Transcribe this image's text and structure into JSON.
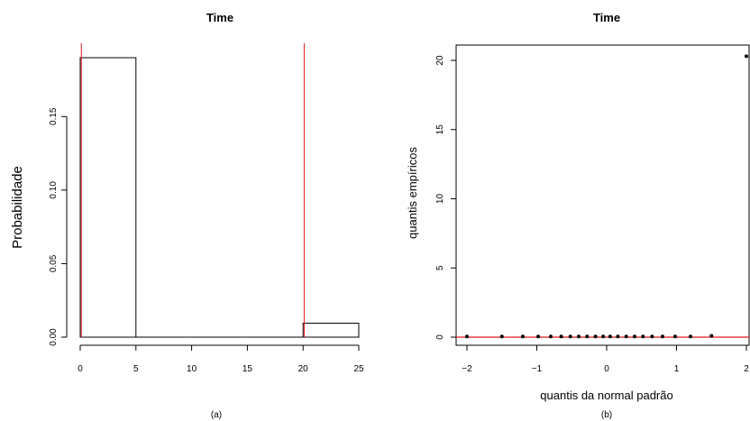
{
  "chart_data": [
    {
      "type": "bar",
      "title": "Time",
      "xlabel": "",
      "ylabel": "Probabilidade",
      "caption": "(a)",
      "xlim": [
        0,
        25
      ],
      "ylim": [
        0,
        0.19
      ],
      "x_ticks": [
        0,
        5,
        10,
        15,
        20,
        25
      ],
      "y_ticks": [
        0.0,
        0.05,
        0.1,
        0.15
      ],
      "y_tick_labels": [
        "0.00",
        "0.05",
        "0.10",
        "0.15"
      ],
      "bins": [
        {
          "from": 0,
          "to": 5,
          "value": 0.19
        },
        {
          "from": 5,
          "to": 10,
          "value": 0.0
        },
        {
          "from": 10,
          "to": 15,
          "value": 0.0
        },
        {
          "from": 15,
          "to": 20,
          "value": 0.0
        },
        {
          "from": 20,
          "to": 25,
          "value": 0.0095
        }
      ],
      "vlines": [
        0.1,
        20.1
      ],
      "overlay_line_color": "#e31a1c"
    },
    {
      "type": "scatter",
      "title": "Time",
      "xlabel": "quantis da normal padrão",
      "ylabel": "quantis empíricos",
      "caption": "(b)",
      "xlim": [
        -2,
        2
      ],
      "ylim": [
        0,
        20
      ],
      "x_ticks": [
        -2,
        -1,
        0,
        1,
        2
      ],
      "x_tick_labels": [
        "−2",
        "−1",
        "0",
        "1",
        "2"
      ],
      "y_ticks": [
        0,
        5,
        10,
        15,
        20
      ],
      "points": [
        {
          "x": -2.0,
          "y": 0.05
        },
        {
          "x": -1.5,
          "y": 0.05
        },
        {
          "x": -1.2,
          "y": 0.05
        },
        {
          "x": -0.98,
          "y": 0.05
        },
        {
          "x": -0.8,
          "y": 0.05
        },
        {
          "x": -0.65,
          "y": 0.05
        },
        {
          "x": -0.52,
          "y": 0.05
        },
        {
          "x": -0.4,
          "y": 0.05
        },
        {
          "x": -0.28,
          "y": 0.05
        },
        {
          "x": -0.16,
          "y": 0.05
        },
        {
          "x": -0.05,
          "y": 0.05
        },
        {
          "x": 0.05,
          "y": 0.05
        },
        {
          "x": 0.16,
          "y": 0.05
        },
        {
          "x": 0.28,
          "y": 0.05
        },
        {
          "x": 0.4,
          "y": 0.05
        },
        {
          "x": 0.52,
          "y": 0.05
        },
        {
          "x": 0.65,
          "y": 0.05
        },
        {
          "x": 0.8,
          "y": 0.05
        },
        {
          "x": 0.98,
          "y": 0.05
        },
        {
          "x": 1.2,
          "y": 0.05
        },
        {
          "x": 1.5,
          "y": 0.1
        },
        {
          "x": 2.0,
          "y": 20.3
        }
      ],
      "reference_line": {
        "intercept": 0.0,
        "slope": 0.0
      },
      "point_color": "#000000",
      "line_color": "#e31a1c"
    }
  ]
}
